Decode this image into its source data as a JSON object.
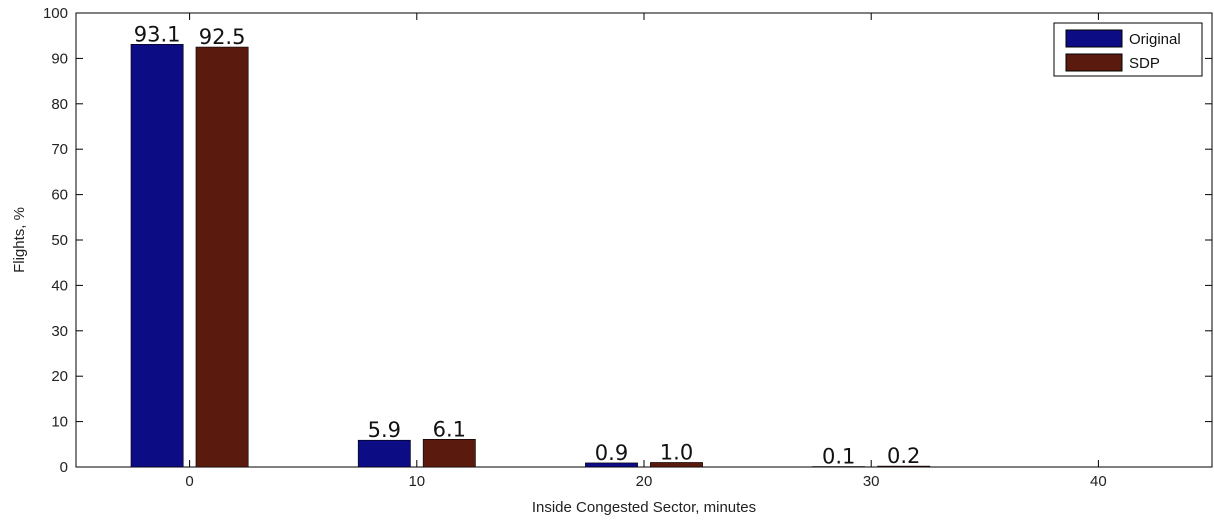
{
  "chart_data": {
    "type": "bar",
    "categories": [
      "0",
      "10",
      "20",
      "30",
      "40"
    ],
    "x": [
      0,
      10,
      20,
      30,
      40
    ],
    "series": [
      {
        "name": "Original",
        "color": "#0c0c84",
        "values": [
          93.1,
          5.9,
          0.9,
          0.1,
          0
        ],
        "labels": [
          "93.1",
          "5.9",
          "0.9",
          "0.1",
          ""
        ]
      },
      {
        "name": "SDP",
        "color": "#5a1a0e",
        "values": [
          92.5,
          6.1,
          1.0,
          0.2,
          0
        ],
        "labels": [
          "92.5",
          "6.1",
          "1.0",
          "0.2",
          ""
        ]
      }
    ],
    "xlabel": "Inside Congested Sector, minutes",
    "ylabel": "Flights, %",
    "xlim": [
      -5,
      45
    ],
    "ylim": [
      0,
      100
    ],
    "yticks": [
      "0",
      "10",
      "20",
      "30",
      "40",
      "50",
      "60",
      "70",
      "80",
      "90",
      "100"
    ],
    "grid": false,
    "legend": "top-right"
  }
}
